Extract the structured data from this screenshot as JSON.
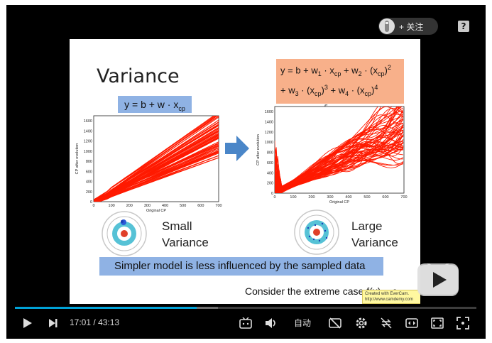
{
  "overlay": {
    "follow_label": "+ 关注",
    "help_label": "?"
  },
  "slide": {
    "title": "Variance",
    "left_formula": "y = b + w · x",
    "left_formula_sub": "cp",
    "right_formula_line1_a": "y = b + w",
    "right_formula_line2_a": "+ w",
    "right_formula_line3_a": "+ w",
    "small_label_1": "Small",
    "small_label_2": "Variance",
    "large_label_1": "Large",
    "large_label_2": "Variance",
    "banner": "Simpler model is less influenced by the sampled data",
    "extreme_text": "Consider the extreme case f(x) = c",
    "evercam_line1": "Created with EverCam.",
    "evercam_line2": "http://www.camdemy.com"
  },
  "chart_data": [
    {
      "type": "line",
      "xlabel": "Original CP",
      "ylabel": "CP after evolution",
      "x_ticks": [
        0,
        100,
        200,
        300,
        400,
        500,
        600,
        700
      ],
      "y_ticks": [
        0,
        200,
        400,
        600,
        800,
        1000,
        1200,
        1400,
        1600
      ],
      "xlim": [
        0,
        700
      ],
      "ylim": [
        0,
        1700
      ],
      "series_color": "#ff1a00",
      "description_kind": "many linear fits"
    },
    {
      "type": "line",
      "xlabel": "Original CP",
      "ylabel": "CP after evolution",
      "x_ticks": [
        0,
        100,
        200,
        300,
        400,
        500,
        600,
        700
      ],
      "y_ticks": [
        0,
        200,
        400,
        600,
        800,
        1000,
        1200,
        1400,
        1600
      ],
      "xlim": [
        0,
        700
      ],
      "ylim": [
        0,
        1700
      ],
      "series_color": "#ff1a00",
      "description_kind": "many degree-5 fits"
    }
  ],
  "player": {
    "current_time": "17:01",
    "separator": "/",
    "duration": "43:13",
    "quality_label": "自动",
    "progress_fraction": 0.394,
    "buffer_fraction": 0.44
  },
  "colors": {
    "progress": "#00a1d6",
    "formula_blue": "#8fb2e4",
    "formula_orange": "#f8b08a",
    "line_red": "#ff1a00",
    "arrow_blue": "#4a86c8"
  }
}
